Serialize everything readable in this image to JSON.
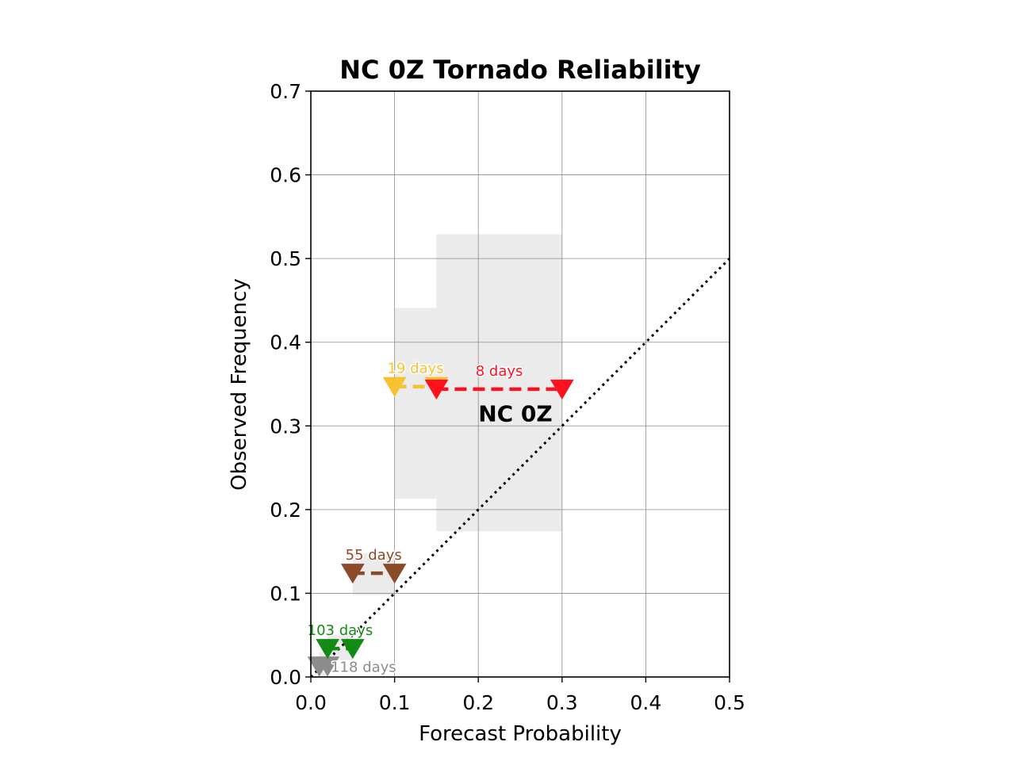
{
  "chart_data": {
    "type": "scatter",
    "title": "NC 0Z Tornado Reliability",
    "xlabel": "Forecast Probability",
    "ylabel": "Observed Frequency",
    "xlim": [
      0.0,
      0.5
    ],
    "ylim": [
      0.0,
      0.7
    ],
    "x_ticks": [
      "0.0",
      "0.1",
      "0.2",
      "0.3",
      "0.4",
      "0.5"
    ],
    "y_ticks": [
      "0.0",
      "0.1",
      "0.2",
      "0.3",
      "0.4",
      "0.5",
      "0.6",
      "0.7"
    ],
    "grid": true,
    "reference_line": {
      "x": [
        0.0,
        0.5
      ],
      "y": [
        0.0,
        0.5
      ],
      "style": "dotted",
      "color": "#000000"
    },
    "region_label": {
      "text": "NC 0Z",
      "x": 0.2,
      "y": 0.315
    },
    "categories": [
      {
        "label": "118 days",
        "color": "#8c8c8c",
        "x_start": 0.01,
        "x_end": 0.02,
        "observed": 0.013,
        "range_low": 0.0,
        "range_high": 0.03
      },
      {
        "label": "103 days",
        "color": "#138a13",
        "x_start": 0.02,
        "x_end": 0.05,
        "observed": 0.034,
        "range_low": 0.02,
        "range_high": 0.05
      },
      {
        "label": "55 days",
        "color": "#8b4a28",
        "x_start": 0.05,
        "x_end": 0.1,
        "observed": 0.124,
        "range_low": 0.098,
        "range_high": 0.148
      },
      {
        "label": "19 days",
        "color": "#f7c130",
        "x_start": 0.1,
        "x_end": 0.15,
        "observed": 0.347,
        "range_low": 0.213,
        "range_high": 0.441
      },
      {
        "label": "8 days",
        "color": "#ff101f",
        "x_start": 0.15,
        "x_end": 0.3,
        "observed": 0.344,
        "range_low": 0.174,
        "range_high": 0.529
      }
    ]
  }
}
